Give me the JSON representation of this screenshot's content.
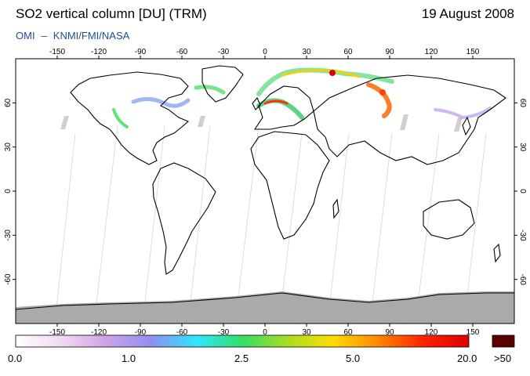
{
  "header": {
    "title": "SO2 vertical column [DU] (TRM)",
    "date": "19 August 2008",
    "instrument": "OMI",
    "dash": "–",
    "agencies": "KNMI/FMI/NASA"
  },
  "map": {
    "projection": "equirectangular",
    "lon_range": [
      -180,
      180
    ],
    "lat_range": [
      -90,
      90
    ],
    "lon_ticks": [
      -150,
      -120,
      -90,
      -60,
      -30,
      0,
      30,
      60,
      90,
      120,
      150
    ],
    "lat_ticks": [
      60,
      30,
      0,
      -30,
      -60
    ],
    "background": "#ffffff",
    "coastline_color": "#000000",
    "no_data_color": "#aaaaaa"
  },
  "colorbar": {
    "labels": [
      "0.0",
      "1.0",
      "2.5",
      "5.0",
      "20.0",
      ">50"
    ],
    "stops": [
      "#ffffff",
      "#f2d9f2",
      "#cfa2e8",
      "#8f8ff0",
      "#2ee6ff",
      "#33dd66",
      "#aadd22",
      "#ffdd00",
      "#ff8800",
      "#ff2200",
      "#dd0000"
    ],
    "overflow_color": "#5a0000"
  }
}
